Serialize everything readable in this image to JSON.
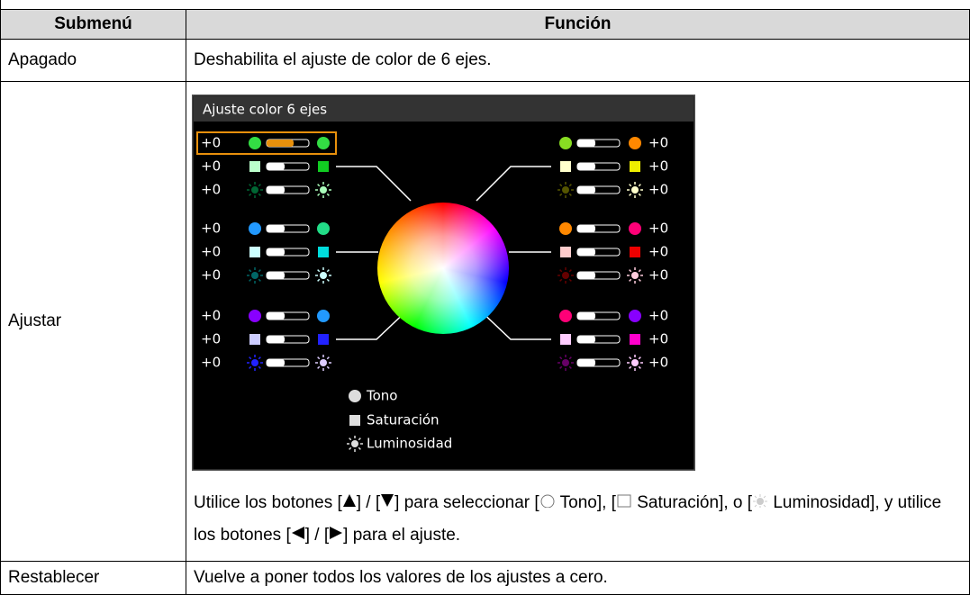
{
  "table": {
    "header": [
      "Submenú",
      "Función"
    ],
    "rows": [
      {
        "submenu": "Apagado",
        "function": "Deshabilita el ajuste de color de 6 ejes."
      },
      {
        "submenu": "Ajustar",
        "screen": {
          "title": "Ajuste color 6 ejes",
          "left_values": [
            "+0",
            "+0",
            "+0",
            "+0",
            "+0",
            "+0",
            "+0",
            "+0",
            "+0"
          ],
          "right_values": [
            "+0",
            "+0",
            "+0",
            "+0",
            "+0",
            "+0",
            "+0",
            "+0",
            "+0"
          ],
          "legend": [
            "Tono",
            "Saturación",
            "Luminosidad"
          ]
        },
        "note": [
          "Utilice los botones [",
          "] / [",
          "] para seleccionar [",
          "Tono], [",
          "Saturación], o [",
          "Luminosidad], y utilice los botones [",
          "] / [",
          "] para el ajuste."
        ]
      },
      {
        "submenu": "Restablecer",
        "function": "Vuelve a poner todos los valores de los ajustes a cero."
      }
    ]
  }
}
